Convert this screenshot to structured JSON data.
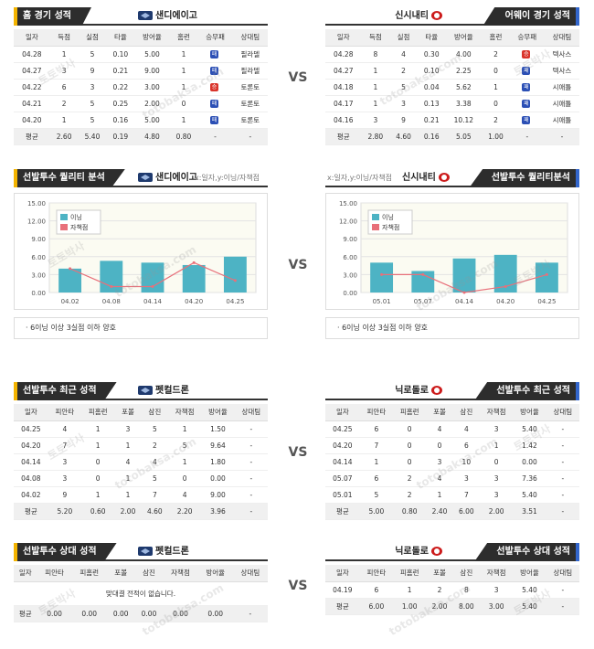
{
  "vs_label": "VS",
  "section1": {
    "left": {
      "title": "홈 경기 성적",
      "team": "샌디에이고",
      "headers": [
        "일자",
        "득점",
        "실점",
        "타율",
        "방어율",
        "홈런",
        "승무패",
        "상대팀"
      ],
      "rows": [
        {
          "date": "04.28",
          "runs": "1",
          "allowed": "5",
          "avg": "0.10",
          "era": "5.00",
          "hr": "1",
          "result": "패",
          "opp": "필라델"
        },
        {
          "date": "04.27",
          "runs": "3",
          "allowed": "9",
          "avg": "0.21",
          "era": "9.00",
          "hr": "1",
          "result": "패",
          "opp": "필라델"
        },
        {
          "date": "04.22",
          "runs": "6",
          "allowed": "3",
          "avg": "0.22",
          "era": "3.00",
          "hr": "1",
          "result": "승",
          "opp": "토론토"
        },
        {
          "date": "04.21",
          "runs": "2",
          "allowed": "5",
          "avg": "0.25",
          "era": "2.00",
          "hr": "0",
          "result": "패",
          "opp": "토론토"
        },
        {
          "date": "04.20",
          "runs": "1",
          "allowed": "5",
          "avg": "0.16",
          "era": "5.00",
          "hr": "1",
          "result": "패",
          "opp": "토론토"
        }
      ],
      "avg_row": {
        "label": "평균",
        "runs": "2.60",
        "allowed": "5.40",
        "avg": "0.19",
        "era": "4.80",
        "hr": "0.80",
        "result": "-",
        "opp": "-"
      }
    },
    "right": {
      "title": "어웨이 경기 성적",
      "team": "신시내티",
      "headers": [
        "일자",
        "득점",
        "실점",
        "타율",
        "방어율",
        "홈런",
        "승무패",
        "상대팀"
      ],
      "rows": [
        {
          "date": "04.28",
          "runs": "8",
          "allowed": "4",
          "avg": "0.30",
          "era": "4.00",
          "hr": "2",
          "result": "승",
          "opp": "텍사스"
        },
        {
          "date": "04.27",
          "runs": "1",
          "allowed": "2",
          "avg": "0.10",
          "era": "2.25",
          "hr": "0",
          "result": "패",
          "opp": "텍사스"
        },
        {
          "date": "04.18",
          "runs": "1",
          "allowed": "5",
          "avg": "0.04",
          "era": "5.62",
          "hr": "1",
          "result": "패",
          "opp": "시애틀"
        },
        {
          "date": "04.17",
          "runs": "1",
          "allowed": "3",
          "avg": "0.13",
          "era": "3.38",
          "hr": "0",
          "result": "패",
          "opp": "시애틀"
        },
        {
          "date": "04.16",
          "runs": "3",
          "allowed": "9",
          "avg": "0.21",
          "era": "10.12",
          "hr": "2",
          "result": "패",
          "opp": "시애틀"
        }
      ],
      "avg_row": {
        "label": "평균",
        "runs": "2.80",
        "allowed": "4.60",
        "avg": "0.16",
        "era": "5.05",
        "hr": "1.00",
        "result": "-",
        "opp": "-"
      }
    }
  },
  "colors": {
    "win": "#d9342b",
    "loss": "#2b4fb5",
    "bar": "#4db3c4",
    "line": "#e8707a"
  },
  "section2": {
    "left": {
      "title": "선발투수 퀄리티 분석",
      "team": "샌디에이고",
      "axis_note": "x:일자,y:이닝/자책점",
      "legend": [
        "이닝",
        "자책점"
      ],
      "footnote": "6이닝 이상 3실점 이하 양호"
    },
    "right": {
      "title": "선발투수 퀄리티분석",
      "team": "신시내티",
      "axis_note": "x:일자,y:이닝/자책점",
      "legend": [
        "이닝",
        "자책점"
      ],
      "footnote": "6이닝 이상 3실점 이하 양호"
    }
  },
  "chart_data": [
    {
      "type": "bar",
      "categories": [
        "04.02",
        "04.08",
        "04.14",
        "04.20",
        "04.25"
      ],
      "series": [
        {
          "name": "이닝",
          "type": "bar",
          "values": [
            4.0,
            5.3,
            5.0,
            4.6,
            6.0
          ]
        },
        {
          "name": "자책점",
          "type": "line",
          "values": [
            4.0,
            1.0,
            1.0,
            5.0,
            2.0
          ]
        }
      ],
      "ylim": [
        0,
        15
      ],
      "yticks": [
        "0.00",
        "3.00",
        "6.00",
        "9.00",
        "12.00",
        "15.00"
      ],
      "legend": "top-left"
    },
    {
      "type": "bar",
      "categories": [
        "05.01",
        "05.07",
        "04.14",
        "04.20",
        "04.25"
      ],
      "series": [
        {
          "name": "이닝",
          "type": "bar",
          "values": [
            5.0,
            3.6,
            5.7,
            6.3,
            5.0
          ]
        },
        {
          "name": "자책점",
          "type": "line",
          "values": [
            3.0,
            3.0,
            0.0,
            1.0,
            3.0
          ]
        }
      ],
      "ylim": [
        0,
        15
      ],
      "yticks": [
        "0.00",
        "3.00",
        "6.00",
        "9.00",
        "12.00",
        "15.00"
      ],
      "legend": "top-left"
    }
  ],
  "section3": {
    "left": {
      "title": "선발투수 최근 성적",
      "team": "펫컬드론",
      "headers": [
        "일자",
        "피안타",
        "피홈런",
        "포볼",
        "삼진",
        "자책점",
        "방어율",
        "상대팀"
      ],
      "rows": [
        {
          "date": "04.25",
          "h": "4",
          "hr": "1",
          "bb": "3",
          "so": "5",
          "er": "1",
          "era": "1.50",
          "opp": "-"
        },
        {
          "date": "04.20",
          "h": "7",
          "hr": "1",
          "bb": "1",
          "so": "2",
          "er": "5",
          "era": "9.64",
          "opp": "-"
        },
        {
          "date": "04.14",
          "h": "3",
          "hr": "0",
          "bb": "4",
          "so": "4",
          "er": "1",
          "era": "1.80",
          "opp": "-"
        },
        {
          "date": "04.08",
          "h": "3",
          "hr": "0",
          "bb": "1",
          "so": "5",
          "er": "0",
          "era": "0.00",
          "opp": "-"
        },
        {
          "date": "04.02",
          "h": "9",
          "hr": "1",
          "bb": "1",
          "so": "7",
          "er": "4",
          "era": "9.00",
          "opp": "-"
        }
      ],
      "avg_row": {
        "label": "평균",
        "h": "5.20",
        "hr": "0.60",
        "bb": "2.00",
        "so": "4.60",
        "er": "2.20",
        "era": "3.96",
        "opp": "-"
      }
    },
    "right": {
      "title": "선발투수 최근 성적",
      "team": "닉로돌로",
      "headers": [
        "일자",
        "피안타",
        "피홈런",
        "포볼",
        "삼진",
        "자책점",
        "방어율",
        "상대팀"
      ],
      "rows": [
        {
          "date": "04.25",
          "h": "6",
          "hr": "0",
          "bb": "4",
          "so": "4",
          "er": "3",
          "era": "5.40",
          "opp": "-"
        },
        {
          "date": "04.20",
          "h": "7",
          "hr": "0",
          "bb": "0",
          "so": "6",
          "er": "1",
          "era": "1.42",
          "opp": "-"
        },
        {
          "date": "04.14",
          "h": "1",
          "hr": "0",
          "bb": "3",
          "so": "10",
          "er": "0",
          "era": "0.00",
          "opp": "-"
        },
        {
          "date": "05.07",
          "h": "6",
          "hr": "2",
          "bb": "4",
          "so": "3",
          "er": "3",
          "era": "7.36",
          "opp": "-"
        },
        {
          "date": "05.01",
          "h": "5",
          "hr": "2",
          "bb": "1",
          "so": "7",
          "er": "3",
          "era": "5.40",
          "opp": "-"
        }
      ],
      "avg_row": {
        "label": "평균",
        "h": "5.00",
        "hr": "0.80",
        "bb": "2.40",
        "so": "6.00",
        "er": "2.00",
        "era": "3.51",
        "opp": "-"
      }
    }
  },
  "section4": {
    "left": {
      "title": "선발투수 상대 성적",
      "team": "펫컬드론",
      "headers": [
        "일자",
        "피안타",
        "피홈런",
        "포볼",
        "삼진",
        "자책점",
        "방어율",
        "상대팀"
      ],
      "empty_message": "맞대결 전적이 없습니다.",
      "avg_row": {
        "label": "평균",
        "h": "0.00",
        "hr": "0.00",
        "bb": "0.00",
        "so": "0.00",
        "er": "0.00",
        "era": "0.00",
        "opp": "-"
      }
    },
    "right": {
      "title": "선발투수 상대 성적",
      "team": "닉로돌로",
      "headers": [
        "일자",
        "피안타",
        "피홈런",
        "포볼",
        "삼진",
        "자책점",
        "방어율",
        "상대팀"
      ],
      "rows": [
        {
          "date": "04.19",
          "h": "6",
          "hr": "1",
          "bb": "2",
          "so": "8",
          "er": "3",
          "era": "5.40",
          "opp": "-"
        }
      ],
      "avg_row": {
        "label": "평균",
        "h": "6.00",
        "hr": "1.00",
        "bb": "2.00",
        "so": "8.00",
        "er": "3.00",
        "era": "5.40",
        "opp": "-"
      }
    }
  },
  "watermarks": [
    "토토박사",
    "totobaksa.com"
  ]
}
